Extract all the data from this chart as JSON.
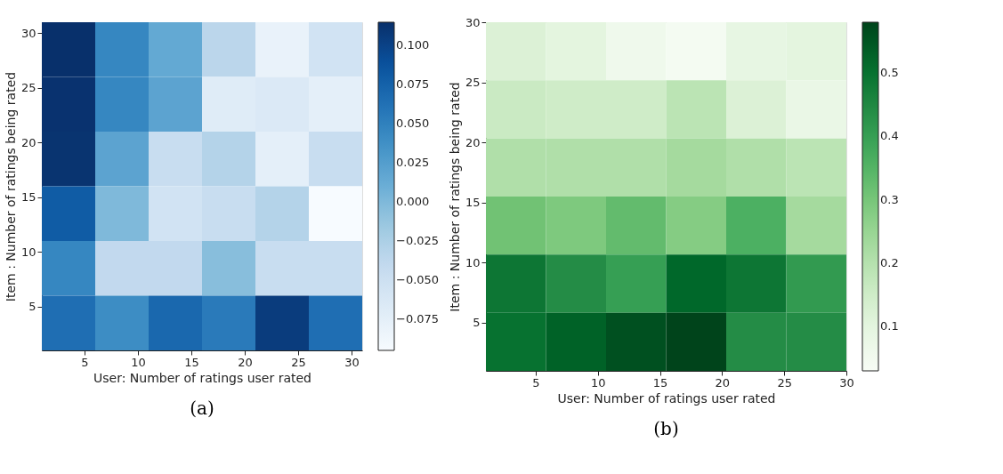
{
  "chart_data": [
    {
      "type": "heatmap",
      "xlabel": "User: Number of ratings user rated",
      "ylabel": "Item : Number of ratings being rated",
      "xlim": [
        1,
        31
      ],
      "ylim": [
        1,
        31
      ],
      "xticks": [
        5,
        10,
        15,
        20,
        25,
        30
      ],
      "yticks": [
        5,
        10,
        15,
        20,
        25,
        30
      ],
      "cells": [
        [
          0.115,
          0.045,
          0.015,
          -0.035,
          -0.08,
          -0.055
        ],
        [
          0.113,
          0.045,
          0.02,
          -0.07,
          -0.065,
          -0.075
        ],
        [
          0.112,
          0.02,
          -0.045,
          -0.03,
          -0.075,
          -0.045
        ],
        [
          0.08,
          0.0,
          -0.055,
          -0.045,
          -0.03,
          -0.095
        ],
        [
          0.045,
          -0.04,
          -0.04,
          -0.005,
          -0.045,
          -0.045
        ],
        [
          0.065,
          0.04,
          0.07,
          0.055,
          0.105,
          0.065
        ]
      ],
      "clim": [
        -0.095,
        0.115
      ],
      "cticks": [
        {
          "value": -0.075,
          "label": "−0.075"
        },
        {
          "value": -0.05,
          "label": "−0.050"
        },
        {
          "value": -0.025,
          "label": "−0.025"
        },
        {
          "value": 0,
          "label": "0.000"
        },
        {
          "value": 0.025,
          "label": "0.025"
        },
        {
          "value": 0.05,
          "label": "0.050"
        },
        {
          "value": 0.075,
          "label": "0.075"
        },
        {
          "value": 0.1,
          "label": "0.100"
        }
      ],
      "colors": [
        "#f7fbff",
        "#deebf7",
        "#c6dbef",
        "#9ecae1",
        "#6baed6",
        "#4292c6",
        "#2171b5",
        "#08519c",
        "#08306b"
      ],
      "annotations": [
        "(a)"
      ]
    },
    {
      "type": "heatmap",
      "xlabel": "User: Number of ratings user rated",
      "ylabel": "Item : Number of ratings being rated",
      "xlim": [
        1,
        30
      ],
      "ylim": [
        1,
        30
      ],
      "xticks": [
        5,
        10,
        15,
        20,
        25,
        30
      ],
      "yticks": [
        5,
        10,
        15,
        20,
        25,
        30
      ],
      "cells": [
        [
          0.12,
          0.1,
          0.06,
          0.04,
          0.09,
          0.1
        ],
        [
          0.16,
          0.15,
          0.15,
          0.19,
          0.12,
          0.08
        ],
        [
          0.21,
          0.21,
          0.21,
          0.23,
          0.21,
          0.19
        ],
        [
          0.31,
          0.29,
          0.33,
          0.28,
          0.36,
          0.23
        ],
        [
          0.49,
          0.44,
          0.4,
          0.52,
          0.49,
          0.41
        ],
        [
          0.5,
          0.53,
          0.56,
          0.58,
          0.44,
          0.44
        ]
      ],
      "clim": [
        0.03,
        0.58
      ],
      "cticks": [
        0.1,
        0.2,
        0.3,
        0.4,
        0.5
      ],
      "colors": [
        "#f7fcf5",
        "#e5f5e0",
        "#c7e9c0",
        "#a1d99b",
        "#74c476",
        "#41ab5d",
        "#238b45",
        "#006d2c",
        "#00441b"
      ],
      "annotations": [
        "(b)"
      ]
    }
  ]
}
